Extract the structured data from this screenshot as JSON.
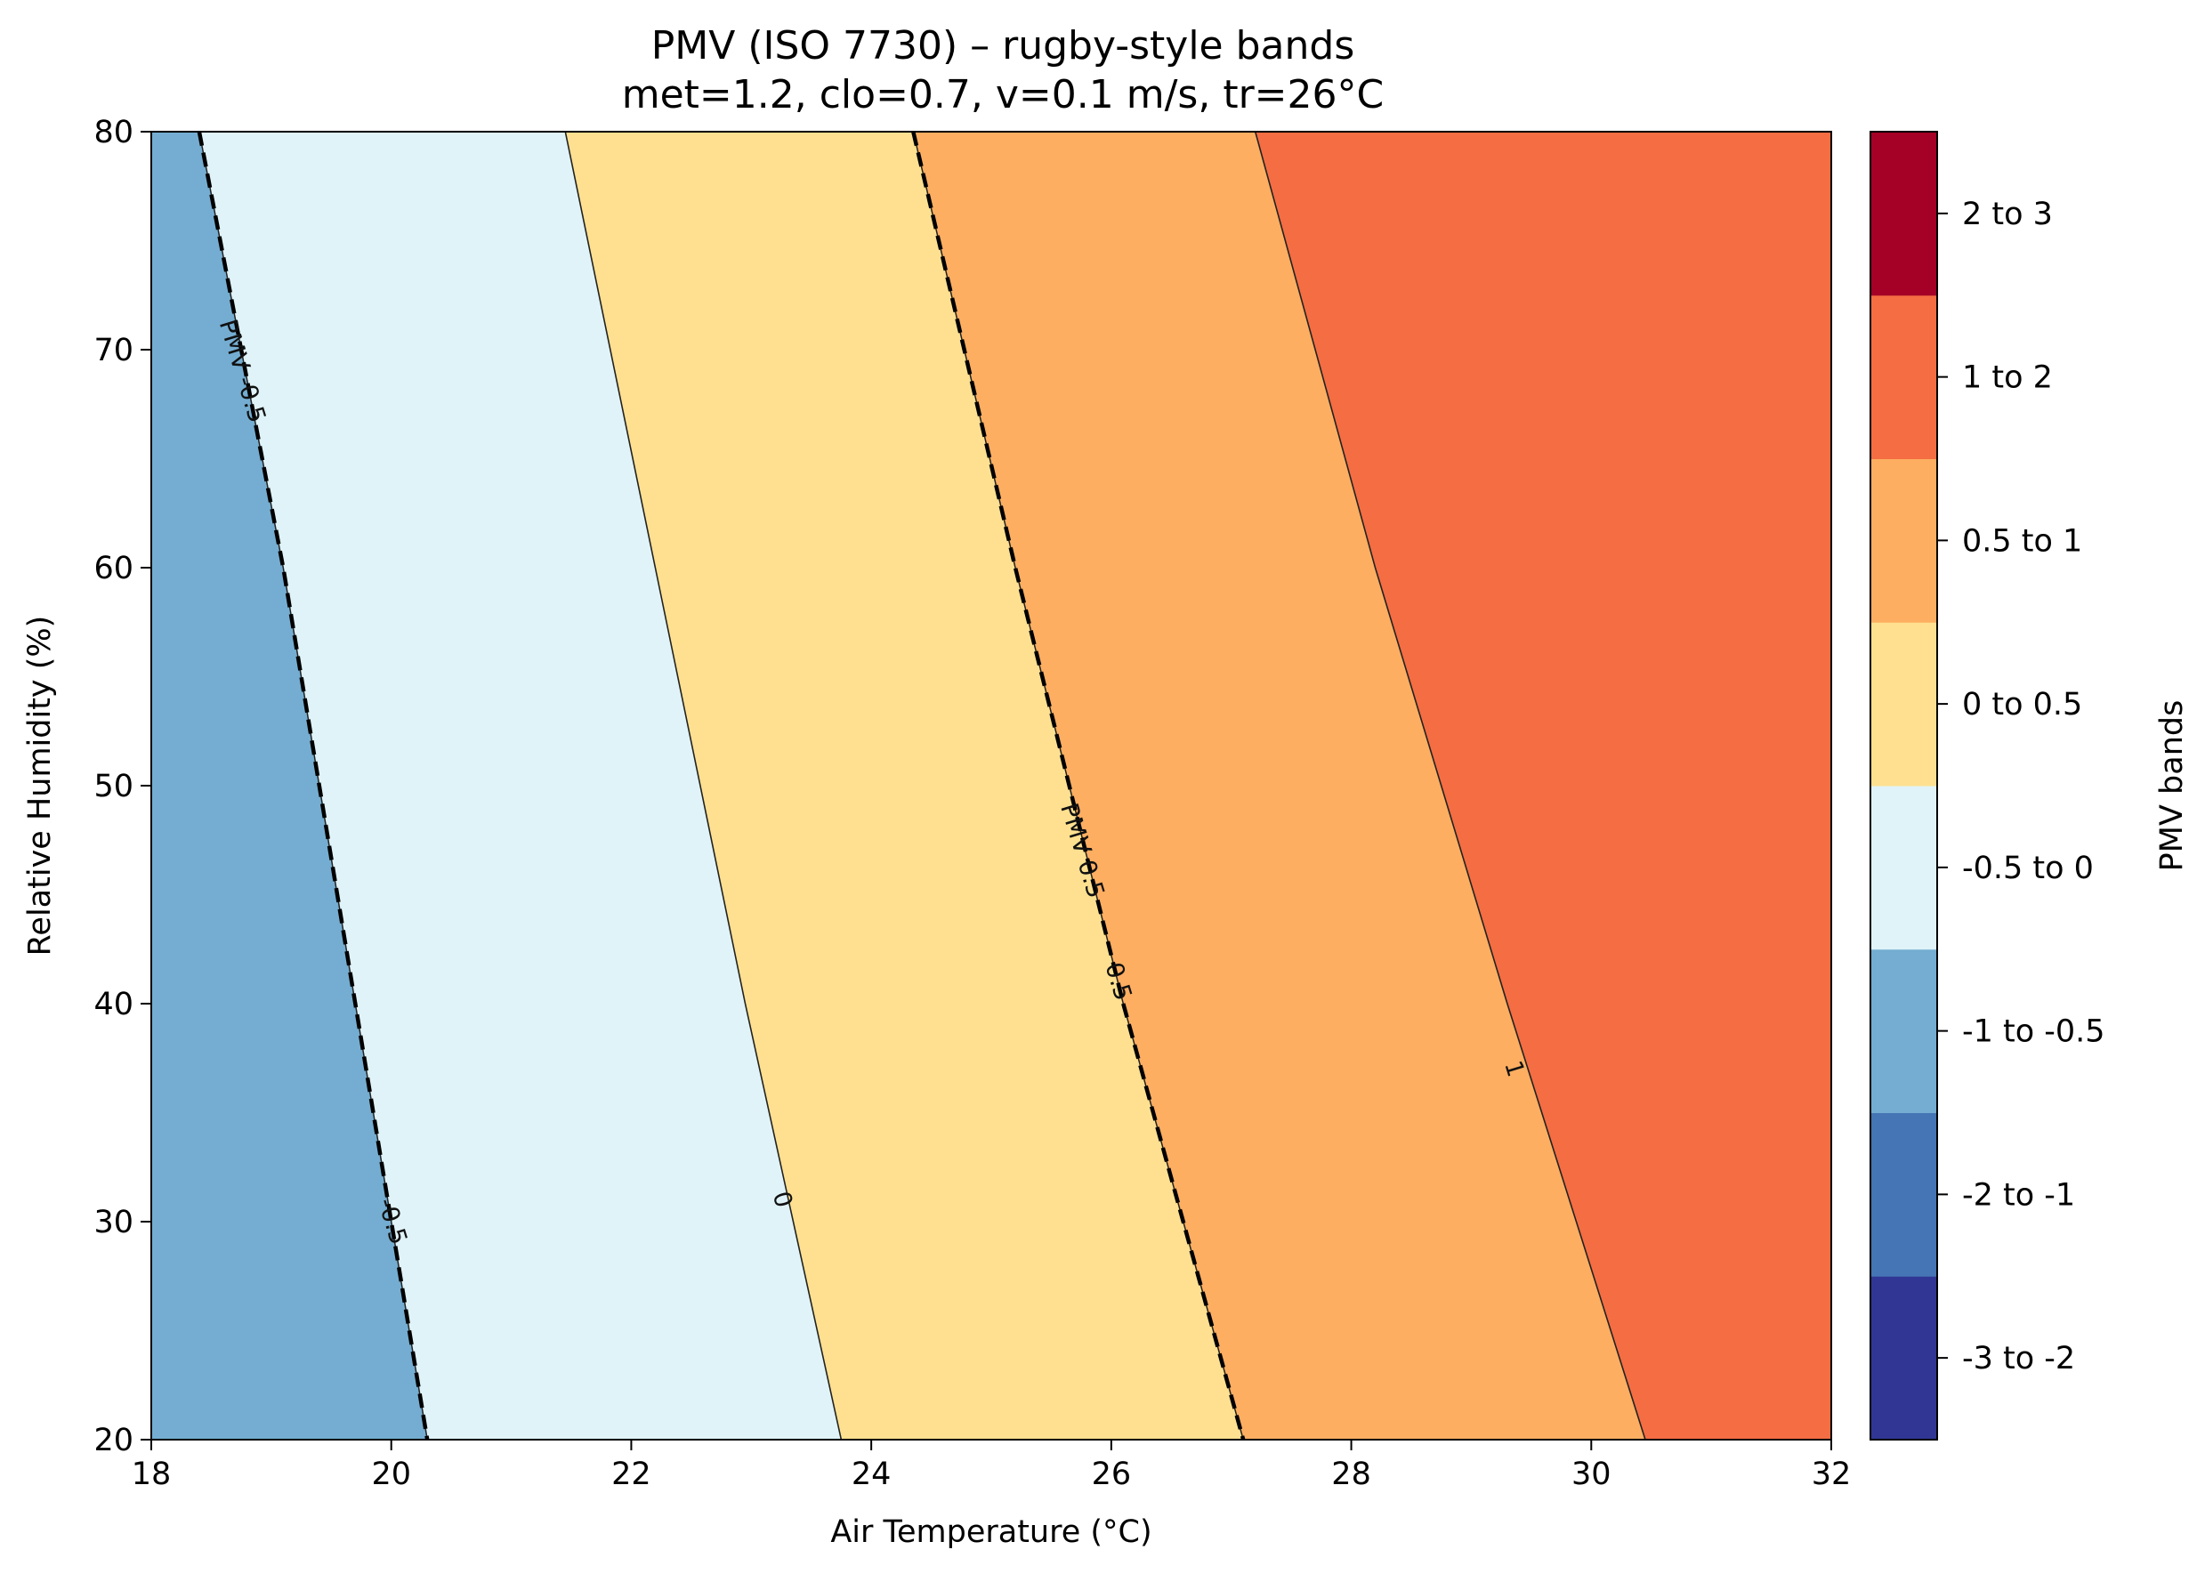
{
  "chart_data": {
    "type": "heatmap",
    "subtype": "filled-contour",
    "title": "PMV (ISO 7730) – rugby-style bands",
    "subtitle": "met=1.2, clo=0.7, v=0.1 m/s, tr=26°C",
    "xlabel": "Air Temperature (°C)",
    "ylabel": "Relative Humidity (%)",
    "xlim": [
      18,
      32
    ],
    "ylim": [
      20,
      80
    ],
    "xticks": [
      "18",
      "20",
      "22",
      "24",
      "26",
      "28",
      "30",
      "32"
    ],
    "yticks": [
      "20",
      "30",
      "40",
      "50",
      "60",
      "70",
      "80"
    ],
    "grid": false,
    "boundaries": [
      {
        "level": -0.5,
        "style": "dashed",
        "points": [
          [
            18.4,
            80
          ],
          [
            19.1,
            60
          ],
          [
            19.7,
            40
          ],
          [
            20.3,
            20
          ]
        ]
      },
      {
        "level": 0,
        "style": "solid",
        "points": [
          [
            21.45,
            80
          ],
          [
            22.2,
            60
          ],
          [
            22.95,
            40
          ],
          [
            23.75,
            20
          ]
        ]
      },
      {
        "level": 0.5,
        "style": "dashed",
        "points": [
          [
            24.35,
            80
          ],
          [
            25.2,
            60
          ],
          [
            26.1,
            40
          ],
          [
            27.1,
            20
          ]
        ]
      },
      {
        "level": 1,
        "style": "solid",
        "points": [
          [
            27.2,
            80
          ],
          [
            28.2,
            60
          ],
          [
            29.3,
            40
          ],
          [
            30.45,
            20
          ]
        ]
      }
    ],
    "band_fills": [
      {
        "band": "-1 to -0.5",
        "color": "#74add1"
      },
      {
        "band": "-0.5 to 0",
        "color": "#e0f3f8"
      },
      {
        "band": "0 to 0.5",
        "color": "#fee090"
      },
      {
        "band": "0.5 to 1",
        "color": "#fdae61"
      },
      {
        "band": "1 to 2",
        "color": "#f46d43"
      }
    ],
    "contour_labels": [
      {
        "text": "PMV -0.5",
        "x": 18.75,
        "y": 69
      },
      {
        "text": "-0.5",
        "x": 20.0,
        "y": 30
      },
      {
        "text": "0",
        "x": 23.25,
        "y": 31
      },
      {
        "text": "PMV 0.5",
        "x": 25.75,
        "y": 47
      },
      {
        "text": "0.5",
        "x": 26.05,
        "y": 41
      },
      {
        "text": "1",
        "x": 29.35,
        "y": 37
      }
    ],
    "colorbar": {
      "label": "PMV bands",
      "bands": [
        {
          "label": "-3 to -2",
          "color": "#313695"
        },
        {
          "label": "-2 to -1",
          "color": "#4575b4"
        },
        {
          "label": "-1 to -0.5",
          "color": "#74add1"
        },
        {
          "label": "-0.5 to 0",
          "color": "#e0f3f8"
        },
        {
          "label": "0 to 0.5",
          "color": "#fee090"
        },
        {
          "label": "0.5 to 1",
          "color": "#fdae61"
        },
        {
          "label": "1 to 2",
          "color": "#f46d43"
        },
        {
          "label": "2 to 3",
          "color": "#a50026"
        }
      ]
    }
  }
}
